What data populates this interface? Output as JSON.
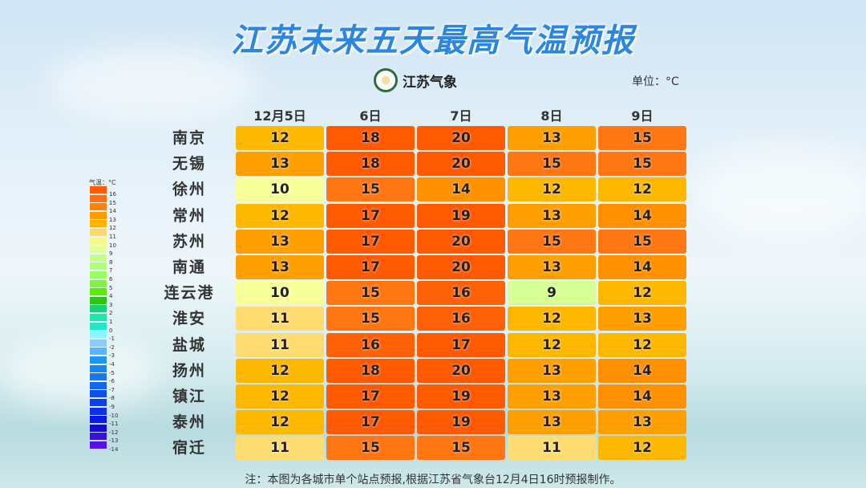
{
  "title": "江苏未来五天最高气温预报",
  "logo_text": "江苏气象",
  "unit": "单位：°C",
  "footer": "注：本图为各城市单个站点预报,根据江苏省气象台12月4日16时预报制作。",
  "chart_data": {
    "type": "heatmap",
    "title": "江苏未来五天最高气温预报",
    "columns": [
      "12月5日",
      "6日",
      "7日",
      "8日",
      "9日"
    ],
    "rows": [
      "南京",
      "无锡",
      "徐州",
      "常州",
      "苏州",
      "南通",
      "连云港",
      "淮安",
      "盐城",
      "扬州",
      "镇江",
      "泰州",
      "宿迁"
    ],
    "values": [
      [
        12,
        18,
        20,
        13,
        15
      ],
      [
        13,
        18,
        20,
        15,
        15
      ],
      [
        10,
        15,
        14,
        12,
        12
      ],
      [
        12,
        17,
        19,
        13,
        14
      ],
      [
        13,
        17,
        20,
        15,
        15
      ],
      [
        13,
        17,
        20,
        13,
        14
      ],
      [
        10,
        15,
        16,
        9,
        12
      ],
      [
        11,
        15,
        16,
        12,
        13
      ],
      [
        11,
        16,
        17,
        12,
        12
      ],
      [
        12,
        18,
        20,
        13,
        14
      ],
      [
        12,
        17,
        19,
        13,
        14
      ],
      [
        12,
        17,
        19,
        13,
        13
      ],
      [
        11,
        15,
        15,
        11,
        12
      ]
    ],
    "legend": {
      "title": "气温：°C",
      "labels": [
        "16",
        "15",
        "14",
        "13",
        "12",
        "11",
        "10",
        "9",
        "8",
        "7",
        "6",
        "5",
        "4",
        "3",
        "2",
        "1",
        "0",
        "-1",
        "-2",
        "-3",
        "-4",
        "-5",
        "-6",
        "-7",
        "-8",
        "-9",
        "-10",
        "-11",
        "-12",
        "-13",
        "-14"
      ],
      "colors": [
        "#ff5a00",
        "#ff6e10",
        "#ff8400",
        "#ff9a00",
        "#ffb400",
        "#ffd66a",
        "#f6f78e",
        "#e2ff9a",
        "#c6ff8a",
        "#b0ff78",
        "#98ff60",
        "#7cf640",
        "#58ec00",
        "#2fc410",
        "#1ccf7c",
        "#1ee8a8",
        "#22e8c8",
        "#8af4ff",
        "#88ccff",
        "#58b4ff",
        "#1e96f8",
        "#1a84f0",
        "#1478f0",
        "#1266f0",
        "#0f50ec",
        "#0c40ec",
        "#0a30ec",
        "#0818e0",
        "#1808d8",
        "#3a10dc",
        "#5a10e8"
      ],
      "position": "left"
    },
    "value_colors": {
      "9": "#d6ff96",
      "10": "#f7ff9a",
      "11": "#ffdc72",
      "12": "#ffb800",
      "13": "#ffa000",
      "14": "#ff9000",
      "15": "#ff7612",
      "16": "#ff6206",
      "17": "#ff5a00",
      "18": "#ff5a00",
      "19": "#ff5a00",
      "20": "#ff5a00"
    }
  }
}
